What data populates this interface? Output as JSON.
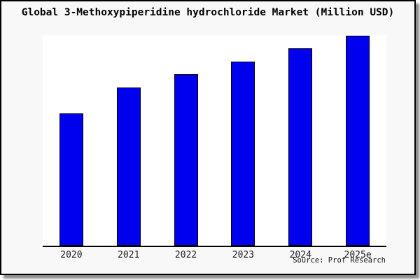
{
  "page": {
    "title": "Global 3-Methoxypiperidine hydrochloride Market (Million USD)"
  },
  "chart_data": {
    "type": "bar",
    "title": "Global 3-Methoxypiperidine hydrochloride Market (Million USD)",
    "categories": [
      "2020",
      "2021",
      "2022",
      "2023",
      "2024",
      "2025e"
    ],
    "values": [
      189,
      226,
      245,
      263,
      282,
      300
    ],
    "value_note": "relative bar heights (px); no y-axis scale, gridlines or data labels are shown in the chart",
    "xlabel": "",
    "ylabel": "",
    "grid": false,
    "legend": false,
    "plot_background": "#ffffff",
    "frame_background": "#f8f8f8",
    "bar_color": "#0000EE",
    "bar_border_color": "#000000",
    "axis_color": "#000000"
  },
  "footer": {
    "source_label": "Source: Prof Research"
  }
}
